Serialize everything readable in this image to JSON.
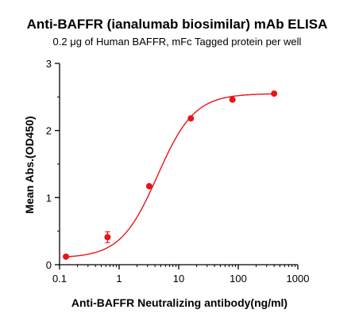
{
  "chart_data": {
    "type": "scatter",
    "title": "Anti-BAFFR (ianalumab biosimilar) mAb ELISA",
    "subtitle": "0.2 μg of Human BAFFR, mFc Tagged protein per well",
    "xlabel": "Anti-BAFFR Neutralizing antibody(ng/ml)",
    "ylabel": "Mean Abs.(OD450)",
    "x_scale": "log",
    "xlim": [
      0.1,
      1000
    ],
    "ylim": [
      0,
      3
    ],
    "x_ticks": [
      0.1,
      1,
      10,
      100,
      1000
    ],
    "x_tick_labels": [
      "0.1",
      "1",
      "10",
      "100",
      "1000"
    ],
    "y_ticks": [
      0,
      1,
      2,
      3
    ],
    "y_tick_labels": [
      "0",
      "1",
      "2",
      "3"
    ],
    "grid": false,
    "series": [
      {
        "x": [
          0.128,
          0.64,
          3.2,
          16,
          80,
          400
        ],
        "y": [
          0.12,
          0.41,
          1.17,
          2.18,
          2.46,
          2.55
        ],
        "error": [
          0.0,
          0.08,
          0.0,
          0.0,
          0.0,
          0.0
        ],
        "fit": {
          "model": "4PL",
          "bottom": 0.1,
          "top": 2.55,
          "ec50": 4.4,
          "hill": 1.4
        },
        "color": "#e8141b"
      }
    ]
  }
}
